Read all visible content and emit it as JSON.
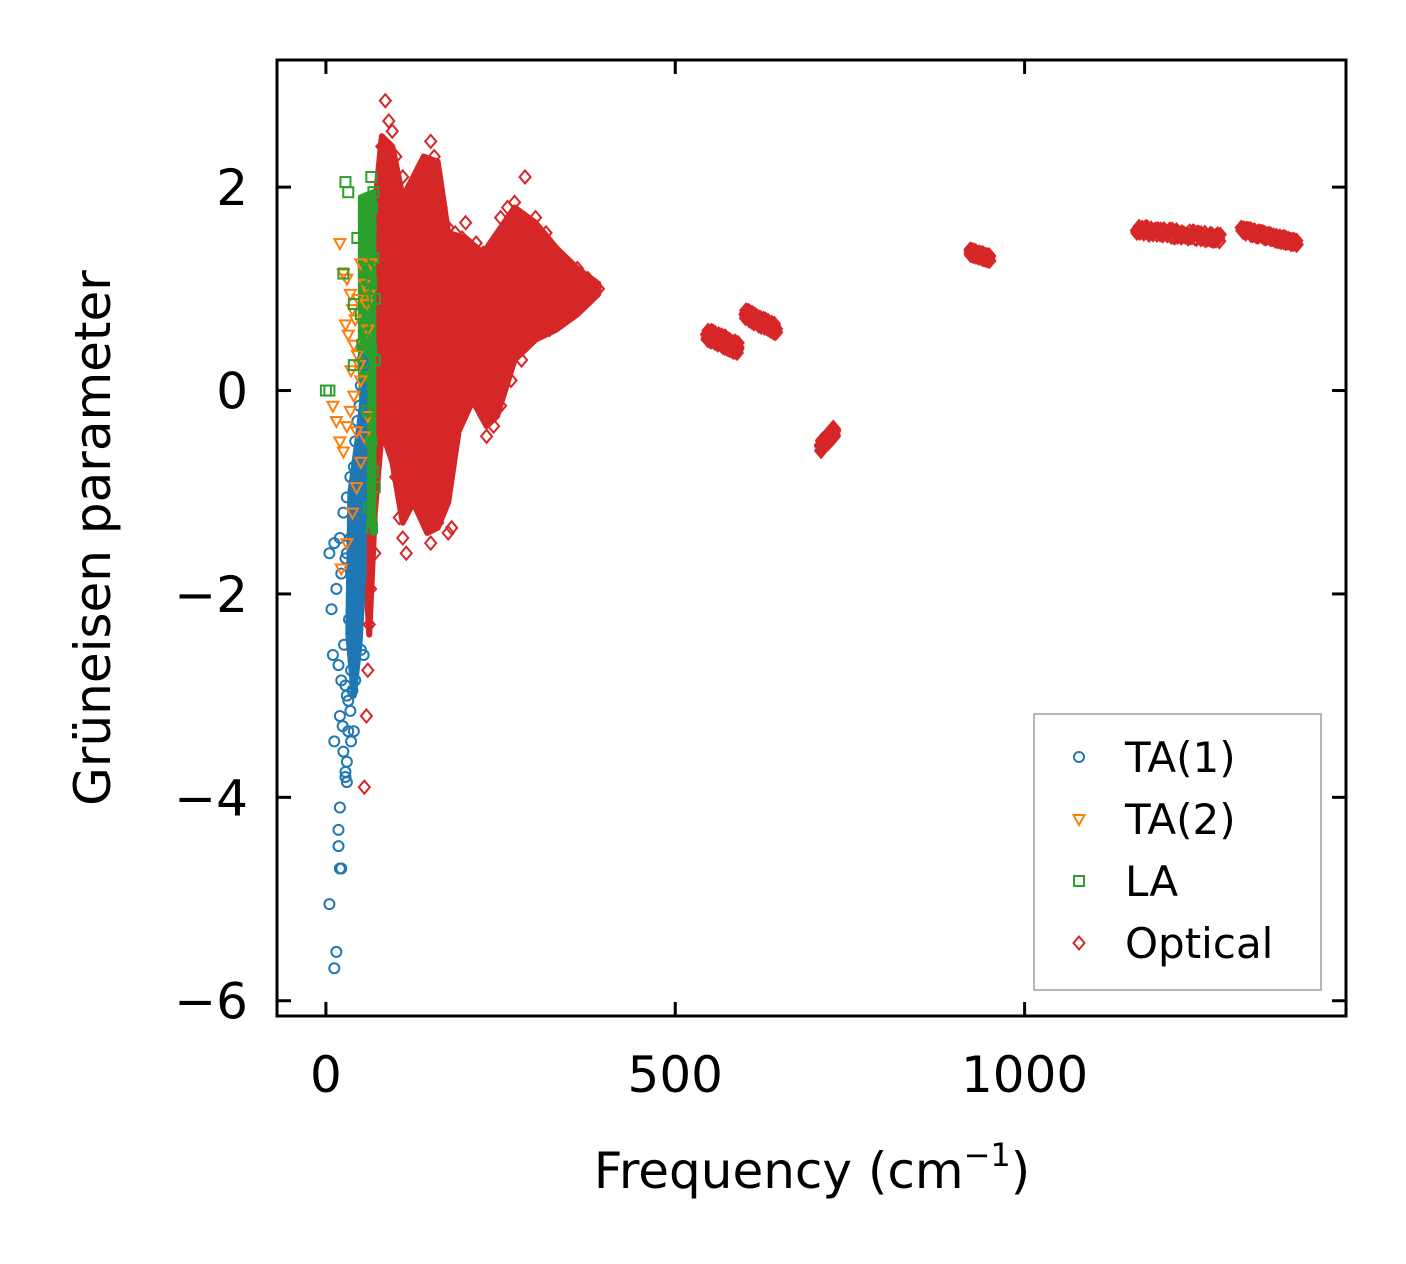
{
  "chart_data": {
    "type": "scatter",
    "title": "",
    "xlabel": "Frequency (cm",
    "xlabel_sup": "−1",
    "xlabel_close": ")",
    "ylabel": "Grüneisen parameter",
    "xlim": [
      -70,
      1460
    ],
    "ylim": [
      -6.15,
      3.25
    ],
    "xticks": [
      0,
      500,
      1000
    ],
    "xtick_labels": [
      "0",
      "500",
      "1000"
    ],
    "yticks": [
      2,
      0,
      -2,
      -4,
      -6
    ],
    "ytick_labels": [
      "2",
      "0",
      "−2",
      "−4",
      "−6"
    ],
    "legend_position": "lower-right",
    "grid": false,
    "series": [
      {
        "name": "TA(1)",
        "marker": "circle",
        "color": "#1f77b4",
        "points": [
          [
            5,
            -5.05
          ],
          [
            12,
            -5.68
          ],
          [
            15,
            -5.52
          ],
          [
            20,
            -4.7
          ],
          [
            22,
            -4.7
          ],
          [
            18,
            -4.32
          ],
          [
            20,
            -4.1
          ],
          [
            18,
            -4.48
          ],
          [
            12,
            -3.45
          ],
          [
            20,
            -3.2
          ],
          [
            28,
            -3.75
          ],
          [
            30,
            -3.85
          ],
          [
            25,
            -3.55
          ],
          [
            32,
            -3.35
          ],
          [
            35,
            -3.15
          ],
          [
            10,
            -2.6
          ],
          [
            18,
            -2.7
          ],
          [
            22,
            -2.85
          ],
          [
            28,
            -2.9
          ],
          [
            30,
            -3.0
          ],
          [
            36,
            -2.75
          ],
          [
            40,
            -2.55
          ],
          [
            45,
            -2.35
          ],
          [
            8,
            -2.15
          ],
          [
            15,
            -1.95
          ],
          [
            22,
            -1.8
          ],
          [
            30,
            -1.6
          ],
          [
            35,
            -1.45
          ],
          [
            40,
            -1.3
          ],
          [
            45,
            -1.15
          ],
          [
            5,
            -1.6
          ],
          [
            12,
            -1.5
          ],
          [
            20,
            -1.45
          ],
          [
            25,
            -1.2
          ],
          [
            30,
            -1.05
          ],
          [
            35,
            -0.85
          ],
          [
            40,
            -0.75
          ],
          [
            42,
            -0.5
          ],
          [
            45,
            -0.3
          ],
          [
            48,
            -0.15
          ],
          [
            50,
            0.05
          ],
          [
            52,
            0.3
          ],
          [
            55,
            0.25
          ],
          [
            28,
            -1.65
          ],
          [
            38,
            -2.05
          ],
          [
            44,
            -1.75
          ],
          [
            48,
            -1.35
          ],
          [
            50,
            -0.95
          ],
          [
            52,
            -0.65
          ],
          [
            33,
            -2.25
          ],
          [
            42,
            -1.95
          ],
          [
            46,
            -2.15
          ],
          [
            50,
            -2.55
          ],
          [
            54,
            -2.6
          ],
          [
            38,
            -2.95
          ],
          [
            42,
            -2.85
          ],
          [
            26,
            -2.5
          ],
          [
            24,
            -3.3
          ],
          [
            32,
            -3.05
          ],
          [
            36,
            -3.45
          ],
          [
            40,
            -3.35
          ],
          [
            30,
            -3.65
          ],
          [
            28,
            -3.8
          ]
        ]
      },
      {
        "name": "TA(2)",
        "marker": "triangle-down",
        "color": "#ff7f0e",
        "points": [
          [
            20,
            1.45
          ],
          [
            25,
            1.15
          ],
          [
            30,
            1.1
          ],
          [
            35,
            0.95
          ],
          [
            38,
            0.8
          ],
          [
            28,
            0.65
          ],
          [
            32,
            0.55
          ],
          [
            40,
            0.45
          ],
          [
            45,
            0.35
          ],
          [
            48,
            0.25
          ],
          [
            50,
            0.1
          ],
          [
            10,
            -0.15
          ],
          [
            15,
            -0.3
          ],
          [
            20,
            -0.5
          ],
          [
            25,
            -0.6
          ],
          [
            30,
            -0.35
          ],
          [
            35,
            -0.2
          ],
          [
            40,
            -0.05
          ],
          [
            42,
            0.7
          ],
          [
            46,
            0.9
          ],
          [
            50,
            1.25
          ],
          [
            55,
            1.05
          ],
          [
            58,
            0.85
          ],
          [
            60,
            0.6
          ],
          [
            22,
            -1.75
          ],
          [
            30,
            -1.5
          ],
          [
            38,
            -1.2
          ],
          [
            44,
            -0.95
          ],
          [
            50,
            -0.7
          ],
          [
            55,
            -0.45
          ],
          [
            60,
            -0.25
          ],
          [
            65,
            1.25
          ],
          [
            62,
            0.95
          ],
          [
            36,
            0.2
          ],
          [
            44,
            -0.4
          ]
        ]
      },
      {
        "name": "LA",
        "marker": "square",
        "color": "#2ca02c",
        "points": [
          [
            28,
            2.05
          ],
          [
            32,
            1.95
          ],
          [
            65,
            2.1
          ],
          [
            68,
            1.95
          ],
          [
            60,
            1.85
          ],
          [
            62,
            1.7
          ],
          [
            58,
            1.55
          ],
          [
            45,
            1.5
          ],
          [
            55,
            1.4
          ],
          [
            60,
            1.2
          ],
          [
            65,
            1.05
          ],
          [
            70,
            0.9
          ],
          [
            25,
            1.15
          ],
          [
            40,
            0.85
          ],
          [
            50,
            0.75
          ],
          [
            55,
            0.65
          ],
          [
            60,
            0.5
          ],
          [
            65,
            0.4
          ],
          [
            70,
            0.3
          ],
          [
            0,
            0.0
          ],
          [
            5,
            0.0
          ],
          [
            40,
            0.25
          ],
          [
            60,
            -0.2
          ],
          [
            65,
            -0.5
          ],
          [
            68,
            -0.8
          ],
          [
            70,
            -0.95
          ],
          [
            62,
            -1.15
          ],
          [
            66,
            -1.35
          ],
          [
            68,
            1.3
          ],
          [
            64,
            1.6
          ],
          [
            66,
            1.8
          ],
          [
            56,
            1.0
          ],
          [
            52,
            0.45
          ]
        ]
      },
      {
        "name": "Optical",
        "marker": "diamond",
        "color": "#d62728",
        "points": [
          [
            85,
            2.85
          ],
          [
            90,
            2.65
          ],
          [
            95,
            2.55
          ],
          [
            80,
            2.4
          ],
          [
            100,
            2.3
          ],
          [
            110,
            2.1
          ],
          [
            150,
            2.45
          ],
          [
            155,
            2.3
          ],
          [
            165,
            1.8
          ],
          [
            175,
            1.6
          ],
          [
            185,
            1.55
          ],
          [
            195,
            1.5
          ],
          [
            200,
            1.65
          ],
          [
            215,
            1.45
          ],
          [
            225,
            1.35
          ],
          [
            240,
            1.45
          ],
          [
            250,
            1.7
          ],
          [
            260,
            1.8
          ],
          [
            270,
            1.85
          ],
          [
            285,
            2.1
          ],
          [
            300,
            1.7
          ],
          [
            315,
            1.55
          ],
          [
            330,
            1.35
          ],
          [
            345,
            1.25
          ],
          [
            360,
            1.2
          ],
          [
            375,
            1.1
          ],
          [
            390,
            1.0
          ],
          [
            100,
            -0.85
          ],
          [
            105,
            -1.25
          ],
          [
            110,
            -1.45
          ],
          [
            115,
            -1.6
          ],
          [
            130,
            -0.85
          ],
          [
            140,
            -1.0
          ],
          [
            150,
            -1.5
          ],
          [
            160,
            -1.3
          ],
          [
            165,
            -0.85
          ],
          [
            175,
            -1.4
          ],
          [
            180,
            -1.35
          ],
          [
            55,
            -3.9
          ],
          [
            60,
            -2.75
          ],
          [
            58,
            -3.2
          ],
          [
            62,
            -2.3
          ],
          [
            64,
            -1.95
          ],
          [
            70,
            -1.6
          ],
          [
            230,
            -0.45
          ],
          [
            240,
            -0.35
          ],
          [
            250,
            -0.15
          ],
          [
            265,
            0.1
          ],
          [
            280,
            0.3
          ],
          [
            295,
            0.55
          ],
          [
            310,
            0.75
          ],
          [
            320,
            0.6
          ]
        ]
      }
    ],
    "dense_regions": [
      {
        "series": "Optical",
        "color": "#d62728",
        "outline": [
          [
            80,
            2.5
          ],
          [
            95,
            2.4
          ],
          [
            110,
            1.9
          ],
          [
            140,
            2.3
          ],
          [
            160,
            2.25
          ],
          [
            175,
            1.55
          ],
          [
            200,
            1.5
          ],
          [
            225,
            1.35
          ],
          [
            245,
            1.55
          ],
          [
            270,
            1.8
          ],
          [
            300,
            1.65
          ],
          [
            330,
            1.4
          ],
          [
            360,
            1.2
          ],
          [
            390,
            1.05
          ],
          [
            390,
            0.95
          ],
          [
            360,
            0.75
          ],
          [
            330,
            0.6
          ],
          [
            300,
            0.5
          ],
          [
            270,
            0.3
          ],
          [
            245,
            -0.25
          ],
          [
            230,
            -0.35
          ],
          [
            210,
            -0.1
          ],
          [
            190,
            -0.4
          ],
          [
            175,
            -1.1
          ],
          [
            160,
            -1.35
          ],
          [
            145,
            -1.4
          ],
          [
            125,
            -1.1
          ],
          [
            110,
            -1.3
          ],
          [
            95,
            -0.7
          ],
          [
            80,
            -0.4
          ],
          [
            70,
            -1.2
          ],
          [
            62,
            -2.4
          ],
          [
            55,
            -1.5
          ],
          [
            55,
            0.0
          ],
          [
            62,
            1.0
          ],
          [
            70,
            1.8
          ]
        ]
      },
      {
        "series": "LA",
        "color": "#2ca02c",
        "outline": [
          [
            50,
            1.9
          ],
          [
            68,
            1.95
          ],
          [
            68,
            -1.4
          ],
          [
            58,
            -1.2
          ],
          [
            50,
            0.2
          ]
        ]
      },
      {
        "series": "TA(1)",
        "color": "#1f77b4",
        "outline": [
          [
            35,
            -1.0
          ],
          [
            45,
            -0.5
          ],
          [
            55,
            0.05
          ],
          [
            54,
            -1.8
          ],
          [
            48,
            -2.5
          ],
          [
            40,
            -3.0
          ],
          [
            32,
            -2.4
          ]
        ]
      }
    ],
    "clusters": [
      {
        "x": [
          545,
          590
        ],
        "y": [
          0.55,
          0.42
        ],
        "spread": 0.12
      },
      {
        "x": [
          600,
          645
        ],
        "y": [
          0.75,
          0.6
        ],
        "spread": 0.1
      },
      {
        "x": [
          708,
          728
        ],
        "y": [
          -0.55,
          -0.4
        ],
        "spread": 0.1
      },
      {
        "x": [
          922,
          950
        ],
        "y": [
          1.36,
          1.3
        ],
        "spread": 0.06
      },
      {
        "x": [
          1160,
          1280
        ],
        "y": [
          1.58,
          1.5
        ],
        "spread": 0.08
      },
      {
        "x": [
          1310,
          1390
        ],
        "y": [
          1.58,
          1.45
        ],
        "spread": 0.06
      }
    ]
  }
}
